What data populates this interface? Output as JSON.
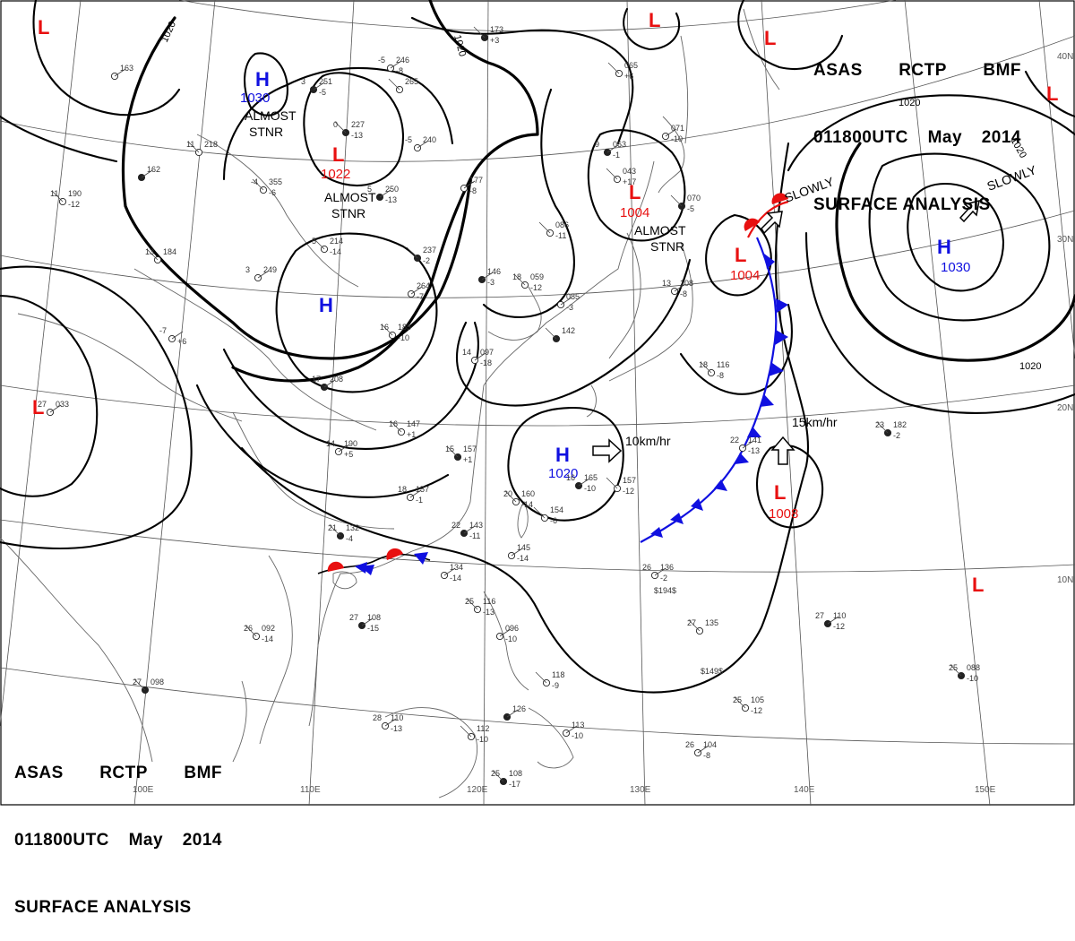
{
  "header": {
    "line1": [
      "ASAS",
      "RCTP",
      "BMF"
    ],
    "line2": [
      "011800UTC",
      "May",
      "2014"
    ],
    "line3": "SURFACE ANALYSIS"
  },
  "colors": {
    "high": "#1010e0",
    "low": "#e81010",
    "cold_front": "#1010e0",
    "warm_front": "#e81010",
    "isobar": "#000000",
    "grid": "#555555",
    "coast": "#666666"
  },
  "pressure_centers": [
    {
      "type": "H",
      "value": "1030",
      "id": "h-northwest"
    },
    {
      "type": "H",
      "value": "",
      "id": "h-mongolia"
    },
    {
      "type": "H",
      "value": "1020",
      "id": "h-south-china-sea"
    },
    {
      "type": "H",
      "value": "1030",
      "id": "h-pacific"
    },
    {
      "type": "L",
      "value": "1022",
      "id": "l-north"
    },
    {
      "type": "L",
      "value": "1004",
      "id": "l-korea"
    },
    {
      "type": "L",
      "value": "1004",
      "id": "l-japan"
    },
    {
      "type": "L",
      "value": "1008",
      "id": "l-philippine-sea"
    },
    {
      "type": "L",
      "value": "",
      "id": "l-west"
    },
    {
      "type": "L",
      "value": "",
      "id": "l-far-north"
    },
    {
      "type": "L",
      "value": "",
      "id": "l-top-a"
    },
    {
      "type": "L",
      "value": "",
      "id": "l-top-b"
    },
    {
      "type": "L",
      "value": "",
      "id": "l-top-right"
    },
    {
      "type": "L",
      "value": "",
      "id": "l-east-tropics"
    }
  ],
  "movement_labels": [
    {
      "text": "ALMOST\nSTNR",
      "id": "move-h-northwest"
    },
    {
      "text": "ALMOST\nSTNR",
      "id": "move-l-north"
    },
    {
      "text": "ALMOST\nSTNR",
      "id": "move-l-korea"
    },
    {
      "text": "SLOWLY",
      "id": "move-l-japan"
    },
    {
      "text": "SLOWLY",
      "id": "move-h-pacific"
    },
    {
      "text": "10km/hr",
      "id": "move-h-scs"
    },
    {
      "text": "15km/hr",
      "id": "move-l-philippine"
    }
  ],
  "isobar_labels": [
    "1020",
    "1020",
    "1020",
    "1020",
    "1020"
  ],
  "grid_labels": {
    "longitude": [
      "100E",
      "110E",
      "120E",
      "130E",
      "140E",
      "150E"
    ],
    "latitude": [
      "40N",
      "30N",
      "20N",
      "10N"
    ]
  },
  "station_plots": [
    {
      "t": "3",
      "p": "251",
      "d": "-5"
    },
    {
      "t": "11",
      "p": "218",
      "d": ""
    },
    {
      "t": "-5",
      "p": "246",
      "d": "-8"
    },
    {
      "t": "0",
      "p": "227",
      "d": "-13"
    },
    {
      "t": "-5",
      "p": "240",
      "d": ""
    },
    {
      "t": "-4",
      "p": "355",
      "d": "-6"
    },
    {
      "t": "5",
      "p": "250",
      "d": "-13"
    },
    {
      "t": "5",
      "p": "214",
      "d": "-14"
    },
    {
      "t": "3",
      "p": "249",
      "d": ""
    },
    {
      "t": "",
      "p": "237",
      "d": "-2"
    },
    {
      "t": "",
      "p": "264",
      "d": "-7"
    },
    {
      "t": "16",
      "p": "185",
      "d": "-10"
    },
    {
      "t": "17",
      "p": "208",
      "d": ""
    },
    {
      "t": "16",
      "p": "147",
      "d": "+1"
    },
    {
      "t": "14",
      "p": "190",
      "d": "+5"
    },
    {
      "t": "15",
      "p": "157",
      "d": "+1"
    },
    {
      "t": "18",
      "p": "157",
      "d": "-1"
    },
    {
      "t": "20",
      "p": "160",
      "d": "-14"
    },
    {
      "t": "22",
      "p": "143",
      "d": "-11"
    },
    {
      "t": "",
      "p": "154",
      "d": "-6"
    },
    {
      "t": "",
      "p": "145",
      "d": "-14"
    },
    {
      "t": "21",
      "p": "132",
      "d": "-4"
    },
    {
      "t": "",
      "p": "134",
      "d": "-14"
    },
    {
      "t": "26",
      "p": "092",
      "d": "-14"
    },
    {
      "t": "27",
      "p": "108",
      "d": "-15"
    },
    {
      "t": "25",
      "p": "116",
      "d": "-13"
    },
    {
      "t": "",
      "p": "096",
      "d": "-10"
    },
    {
      "t": "27",
      "p": "098",
      "d": ""
    },
    {
      "t": "28",
      "p": "110",
      "d": "-13"
    },
    {
      "t": "",
      "p": "112",
      "d": "-10"
    },
    {
      "t": "",
      "p": "126",
      "d": ""
    },
    {
      "t": "",
      "p": "118",
      "d": "-9"
    },
    {
      "t": "",
      "p": "113",
      "d": "-10"
    },
    {
      "t": "25",
      "p": "108",
      "d": "-17"
    },
    {
      "t": "",
      "p": "163",
      "d": ""
    },
    {
      "t": "11",
      "p": "190",
      "d": "-12"
    },
    {
      "t": "",
      "p": "162",
      "d": ""
    },
    {
      "t": "13",
      "p": "184",
      "d": ""
    },
    {
      "t": "-7",
      "p": "",
      "d": "+6"
    },
    {
      "t": "",
      "p": "173",
      "d": "+3"
    },
    {
      "t": "",
      "p": "177",
      "d": "-8"
    },
    {
      "t": "",
      "p": "086",
      "d": "-11"
    },
    {
      "t": "",
      "p": "146",
      "d": "-3"
    },
    {
      "t": "18",
      "p": "059",
      "d": "-12"
    },
    {
      "t": "",
      "p": "085",
      "d": "-3"
    },
    {
      "t": "",
      "p": "142",
      "d": ""
    },
    {
      "t": "14",
      "p": "097",
      "d": "-18"
    },
    {
      "t": "",
      "p": "065",
      "d": "+6"
    },
    {
      "t": "9",
      "p": "063",
      "d": "-1"
    },
    {
      "t": "",
      "p": "043",
      "d": "+17"
    },
    {
      "t": "",
      "p": "071",
      "d": "-10"
    },
    {
      "t": "",
      "p": "070",
      "d": "-5"
    },
    {
      "t": "13",
      "p": "108",
      "d": "-8"
    },
    {
      "t": "18",
      "p": "116",
      "d": "-8"
    },
    {
      "t": "16",
      "p": "165",
      "d": "-10"
    },
    {
      "t": "",
      "p": "157",
      "d": "-12"
    },
    {
      "t": "22",
      "p": "141",
      "d": "-13"
    },
    {
      "t": "23",
      "p": "182",
      "d": "-2"
    },
    {
      "t": "26",
      "p": "136",
      "d": "-2"
    },
    {
      "t": "27",
      "p": "135",
      "d": ""
    },
    {
      "t": "27",
      "p": "110",
      "d": "-12"
    },
    {
      "t": "25",
      "p": "105",
      "d": "-12"
    },
    {
      "t": "26",
      "p": "104",
      "d": "-8"
    },
    {
      "t": "25",
      "p": "088",
      "d": "-10"
    },
    {
      "t": "27",
      "p": "033",
      "d": ""
    },
    {
      "t": "",
      "p": "265",
      "d": ""
    }
  ],
  "sst_labels": [
    "$194$",
    "$149$"
  ]
}
